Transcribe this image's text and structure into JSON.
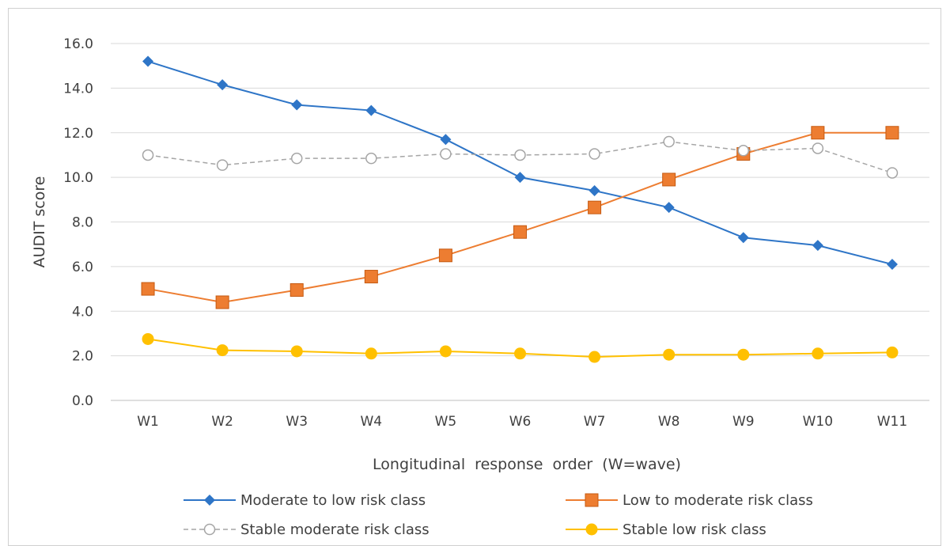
{
  "chart_data": {
    "type": "line",
    "title": "",
    "xlabel": "Longitudinal  response  order  (W=wave)",
    "ylabel": "AUDIT score",
    "categories": [
      "W1",
      "W2",
      "W3",
      "W4",
      "W5",
      "W6",
      "W7",
      "W8",
      "W9",
      "W10",
      "W11"
    ],
    "ylim": [
      0,
      16
    ],
    "yticks": [
      "0.0",
      "2.0",
      "4.0",
      "6.0",
      "8.0",
      "10.0",
      "12.0",
      "14.0",
      "16.0"
    ],
    "grid": "horizontal",
    "legend_position": "bottom",
    "series": [
      {
        "name": "Moderate to low risk class",
        "color": "#2e75c7",
        "marker": "diamond",
        "dash": "solid",
        "values": [
          15.2,
          14.15,
          13.25,
          13.0,
          11.7,
          10.0,
          9.4,
          8.65,
          7.3,
          6.95,
          6.1
        ]
      },
      {
        "name": "Low to moderate risk class",
        "color": "#ed7d31",
        "marker": "square",
        "dash": "solid",
        "values": [
          5.0,
          4.4,
          4.95,
          5.55,
          6.5,
          7.55,
          8.65,
          9.9,
          11.05,
          12.0,
          12.0
        ]
      },
      {
        "name": "Stable moderate risk class",
        "color": "#a5a5a5",
        "marker": "circle-open",
        "dash": "dashed",
        "values": [
          11.0,
          10.55,
          10.85,
          10.85,
          11.05,
          11.0,
          11.05,
          11.6,
          11.2,
          11.3,
          10.2
        ]
      },
      {
        "name": "Stable low risk class",
        "color": "#ffc000",
        "marker": "circle",
        "dash": "solid",
        "values": [
          2.75,
          2.25,
          2.2,
          2.1,
          2.2,
          2.1,
          1.95,
          2.05,
          2.05,
          2.1,
          2.15
        ]
      }
    ]
  }
}
